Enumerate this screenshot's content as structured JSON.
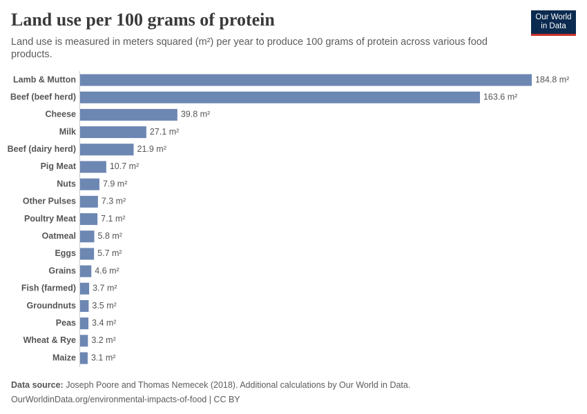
{
  "logo": [
    "Our World",
    "in Data"
  ],
  "chart_data": {
    "type": "bar",
    "orientation": "horizontal",
    "title": "Land use per 100 grams of protein",
    "subtitle": "Land use is measured in meters squared (m²) per year to produce 100 grams of protein across various food products.",
    "categories": [
      "Lamb & Mutton",
      "Beef (beef herd)",
      "Cheese",
      "Milk",
      "Beef (dairy herd)",
      "Pig Meat",
      "Nuts",
      "Other Pulses",
      "Poultry Meat",
      "Oatmeal",
      "Eggs",
      "Grains",
      "Fish (farmed)",
      "Groundnuts",
      "Peas",
      "Wheat & Rye",
      "Maize"
    ],
    "values": [
      184.8,
      163.6,
      39.8,
      27.1,
      21.9,
      10.7,
      7.9,
      7.3,
      7.1,
      5.8,
      5.7,
      4.6,
      3.7,
      3.5,
      3.4,
      3.2,
      3.1
    ],
    "value_labels": [
      "184.8 m²",
      "163.6 m²",
      "39.8 m²",
      "27.1 m²",
      "21.9 m²",
      "10.7 m²",
      "7.9 m²",
      "7.3 m²",
      "7.1 m²",
      "5.8 m²",
      "5.7 m²",
      "4.6 m²",
      "3.7 m²",
      "3.5 m²",
      "3.4 m²",
      "3.2 m²",
      "3.1 m²"
    ],
    "color": "#6d87b3",
    "source_label": "Data source:",
    "source": "Joseph Poore and Thomas Nemecek (2018). Additional calculations by Our World in Data.",
    "url": "OurWorldinData.org/environmental-impacts-of-food | CC BY"
  }
}
